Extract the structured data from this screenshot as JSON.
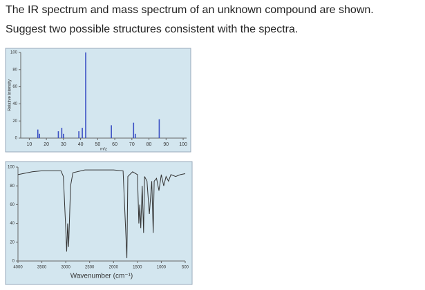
{
  "question": {
    "lines": [
      "The IR spectrum and mass spectrum of an unknown compound are shown.",
      "Suggest two possible structures consistent with the spectra."
    ]
  },
  "chart_data": [
    {
      "type": "bar",
      "y_label": "Relative Intensity",
      "x_label": "m/z",
      "x": [
        15,
        16,
        27,
        29,
        30,
        39,
        41,
        43,
        58,
        71,
        72,
        86
      ],
      "values": [
        10,
        5,
        8,
        12,
        5,
        8,
        12,
        100,
        15,
        18,
        5,
        22
      ],
      "color": "#3a4fc4",
      "background": "#d3e6ef",
      "xlim": [
        5,
        102
      ],
      "xticks": [
        10,
        20,
        30,
        40,
        50,
        60,
        70,
        80,
        90,
        100
      ],
      "ylim": [
        0,
        100
      ],
      "yticks": [
        0,
        20,
        40,
        60,
        80,
        100
      ]
    },
    {
      "type": "line",
      "x_label": "Wavenumber (cm⁻¹)",
      "x": [
        4000,
        3700,
        3500,
        3100,
        3050,
        3000,
        2980,
        2960,
        2940,
        2900,
        2850,
        2600,
        2000,
        1800,
        1720,
        1700,
        1600,
        1500,
        1470,
        1450,
        1430,
        1400,
        1370,
        1350,
        1300,
        1250,
        1200,
        1170,
        1150,
        1100,
        1050,
        1000,
        950,
        900,
        850,
        800,
        700,
        600,
        500
      ],
      "values": [
        92,
        95,
        96,
        96,
        90,
        35,
        10,
        40,
        15,
        80,
        94,
        97,
        97,
        96,
        3,
        90,
        95,
        92,
        40,
        60,
        35,
        80,
        30,
        90,
        85,
        50,
        85,
        30,
        85,
        88,
        75,
        92,
        80,
        90,
        85,
        92,
        90,
        92,
        93
      ],
      "color": "#333333",
      "background": "#d3e6ef",
      "xlim": [
        4000,
        500
      ],
      "xticks": [
        4000,
        3500,
        3000,
        2500,
        2000,
        1500,
        1000,
        500
      ],
      "ylim": [
        0,
        100
      ],
      "yticks": [
        0,
        20,
        40,
        60,
        80,
        100
      ]
    }
  ]
}
